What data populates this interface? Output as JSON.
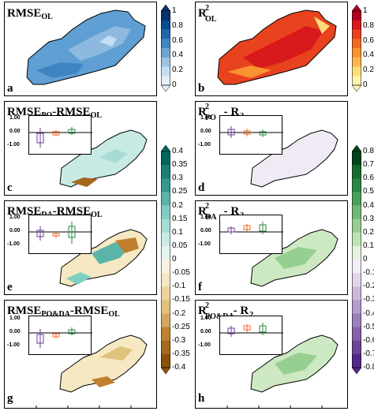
{
  "panels": {
    "a": {
      "label": "a",
      "title": "RMSE",
      "sub": "OL"
    },
    "b": {
      "label": "b",
      "title": "R",
      "sup": "2",
      "sub": "OL"
    },
    "c": {
      "label": "c",
      "title1": "RMSE",
      "sub1": "PO",
      "title2": "-RMSE",
      "sub2": "OL"
    },
    "d": {
      "label": "d",
      "t1": "R",
      "sup1": "2",
      "sub1": "PO",
      "mid": " - R",
      "sup2": "2",
      "sub2": "OL"
    },
    "e": {
      "label": "e",
      "title1": "RMSE",
      "sub1": "DA",
      "title2": "-RMSE",
      "sub2": "OL"
    },
    "f": {
      "label": "f",
      "t1": "R",
      "sup1": "2",
      "sub1": "DA",
      "mid": " - R",
      "sup2": "2",
      "sub2": "OL"
    },
    "g": {
      "label": "g",
      "title1": "RMSE",
      "sub1": "PO&DA",
      "title2": "-RMSE",
      "sub2": "OL"
    },
    "h": {
      "label": "h",
      "t1": "R",
      "sup1": "2",
      "sub1": "PO&DA",
      "mid": " - R",
      "sup2": "2",
      "sub2": "OL"
    }
  },
  "inset_ticks": [
    "1.00",
    "0.00",
    "-1.00"
  ],
  "colorbars": {
    "blues": {
      "ticks": [
        "1",
        "0.8",
        "0.6",
        "0.4",
        "0.2",
        "0"
      ],
      "colors": [
        "#08306b",
        "#0b4a8f",
        "#1f68ac",
        "#3f85c2",
        "#6aa4d3",
        "#9cc3e3",
        "#c6dcf0",
        "#e3eef8"
      ]
    },
    "reds": {
      "ticks": [
        "1",
        "0.8",
        "0.6",
        "0.4",
        "0.2",
        "0"
      ],
      "colors": [
        "#b00020",
        "#d7191c",
        "#e8421e",
        "#f26a21",
        "#f79331",
        "#fbb84c",
        "#fddc7a",
        "#fff3b0"
      ]
    },
    "brbg": {
      "ticks": [
        "0.4",
        "0.35",
        "0.3",
        "0.25",
        "0.2",
        "0.15",
        "0.1",
        "0.05",
        "0",
        "-0.05",
        "-0.1",
        "-0.15",
        "-0.2",
        "-0.25",
        "-0.3",
        "-0.35",
        "-0.4"
      ],
      "colors": [
        "#01665e",
        "#1a7f74",
        "#35978f",
        "#5ab4a8",
        "#80cdc1",
        "#a6dcd3",
        "#c7eae5",
        "#e3f4f1",
        "#fbf3e1",
        "#f6e8c3",
        "#ecd49e",
        "#dfc27d",
        "#d2a860",
        "#bf812d",
        "#a6681c",
        "#8c510a"
      ]
    },
    "prgn": {
      "ticks": [
        "0.8",
        "0.7",
        "0.6",
        "0.5",
        "0.4",
        "0.3",
        "0.2",
        "0.1",
        "0",
        "-0.1",
        "-0.2",
        "-0.3",
        "-0.4",
        "-0.5",
        "-0.6",
        "-0.7",
        "-0.8"
      ],
      "colors": [
        "#00441b",
        "#16692f",
        "#2a8742",
        "#4aa257",
        "#6fb973",
        "#96cf8f",
        "#bde3b2",
        "#e2f2dc",
        "#f3eef6",
        "#e0d5ea",
        "#cbb8dc",
        "#b49ccc",
        "#9b80bc",
        "#8462a9",
        "#6d4594",
        "#542788"
      ]
    }
  }
}
